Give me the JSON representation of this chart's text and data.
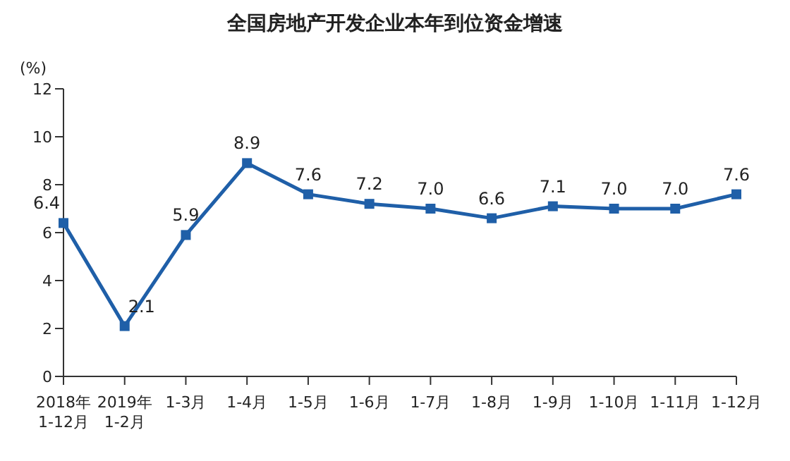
{
  "chart_data": {
    "type": "line",
    "title": "全国房地产开发企业本年到位资金增速",
    "ylabel": "(%)",
    "categories": [
      "2018年\n1-12月",
      "2019年\n1-2月",
      "1-3月",
      "1-4月",
      "1-5月",
      "1-6月",
      "1-7月",
      "1-8月",
      "1-9月",
      "1-10月",
      "1-11月",
      "1-12月"
    ],
    "values": [
      6.4,
      2.1,
      5.9,
      8.9,
      7.6,
      7.2,
      7.0,
      6.6,
      7.1,
      7.0,
      7.0,
      7.6
    ],
    "value_labels": [
      "6.4",
      "2.1",
      "5.9",
      "8.9",
      "7.6",
      "7.2",
      "7.0",
      "6.6",
      "7.1",
      "7.0",
      "7.0",
      "7.6"
    ],
    "color": "#1f5fa8",
    "ylim": [
      0,
      12
    ],
    "yticks": [
      0,
      2,
      4,
      6,
      8,
      10,
      12
    ],
    "marker": "square"
  }
}
